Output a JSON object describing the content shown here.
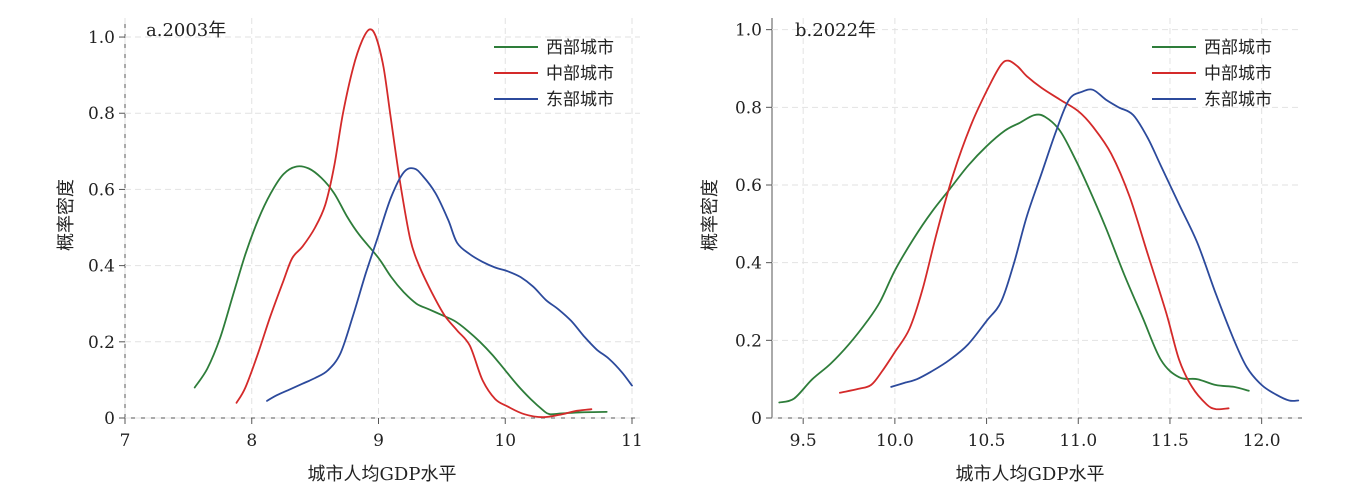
{
  "chart_data": [
    {
      "type": "line",
      "title": "a.2003年",
      "xlabel": "城市人均GDP水平",
      "ylabel": "概率密度",
      "xlim": [
        7,
        11
      ],
      "ylim": [
        0,
        1.05
      ],
      "xticks": [
        7,
        8,
        9,
        10,
        11
      ],
      "xtick_labels": [
        "7",
        "8",
        "9",
        "10",
        "11"
      ],
      "yticks": [
        0,
        0.2,
        0.4,
        0.6,
        0.8,
        1.0
      ],
      "ytick_labels": [
        "0",
        "0.2",
        "0.4",
        "0.6",
        "0.8",
        "1.0"
      ],
      "grid": true,
      "legend_position": "top-right",
      "series": [
        {
          "name": "西部城市",
          "color": "#2e7d3a",
          "points": [
            [
              7.55,
              0.08
            ],
            [
              7.65,
              0.13
            ],
            [
              7.75,
              0.21
            ],
            [
              7.85,
              0.32
            ],
            [
              7.95,
              0.43
            ],
            [
              8.05,
              0.52
            ],
            [
              8.15,
              0.59
            ],
            [
              8.25,
              0.64
            ],
            [
              8.35,
              0.66
            ],
            [
              8.45,
              0.655
            ],
            [
              8.55,
              0.63
            ],
            [
              8.65,
              0.59
            ],
            [
              8.75,
              0.53
            ],
            [
              8.85,
              0.48
            ],
            [
              9.0,
              0.42
            ],
            [
              9.1,
              0.37
            ],
            [
              9.2,
              0.33
            ],
            [
              9.3,
              0.3
            ],
            [
              9.4,
              0.285
            ],
            [
              9.5,
              0.27
            ],
            [
              9.6,
              0.255
            ],
            [
              9.7,
              0.23
            ],
            [
              9.8,
              0.2
            ],
            [
              9.9,
              0.165
            ],
            [
              10.0,
              0.125
            ],
            [
              10.1,
              0.085
            ],
            [
              10.2,
              0.05
            ],
            [
              10.3,
              0.02
            ],
            [
              10.35,
              0.01
            ],
            [
              10.45,
              0.012
            ],
            [
              10.6,
              0.015
            ],
            [
              10.8,
              0.016
            ]
          ]
        },
        {
          "name": "中部城市",
          "color": "#d42a2a",
          "points": [
            [
              7.88,
              0.04
            ],
            [
              7.95,
              0.08
            ],
            [
              8.05,
              0.17
            ],
            [
              8.15,
              0.27
            ],
            [
              8.25,
              0.36
            ],
            [
              8.32,
              0.42
            ],
            [
              8.4,
              0.45
            ],
            [
              8.5,
              0.5
            ],
            [
              8.58,
              0.56
            ],
            [
              8.65,
              0.66
            ],
            [
              8.72,
              0.8
            ],
            [
              8.8,
              0.92
            ],
            [
              8.87,
              0.99
            ],
            [
              8.93,
              1.02
            ],
            [
              8.98,
              1.0
            ],
            [
              9.04,
              0.92
            ],
            [
              9.1,
              0.78
            ],
            [
              9.17,
              0.62
            ],
            [
              9.25,
              0.47
            ],
            [
              9.32,
              0.4
            ],
            [
              9.42,
              0.33
            ],
            [
              9.52,
              0.27
            ],
            [
              9.62,
              0.23
            ],
            [
              9.72,
              0.19
            ],
            [
              9.82,
              0.1
            ],
            [
              9.92,
              0.05
            ],
            [
              10.02,
              0.03
            ],
            [
              10.15,
              0.01
            ],
            [
              10.3,
              0.002
            ],
            [
              10.45,
              0.01
            ],
            [
              10.55,
              0.018
            ],
            [
              10.68,
              0.023
            ]
          ]
        },
        {
          "name": "东部城市",
          "color": "#2c4a9c",
          "points": [
            [
              8.12,
              0.045
            ],
            [
              8.2,
              0.06
            ],
            [
              8.3,
              0.075
            ],
            [
              8.4,
              0.09
            ],
            [
              8.5,
              0.105
            ],
            [
              8.6,
              0.125
            ],
            [
              8.7,
              0.17
            ],
            [
              8.8,
              0.27
            ],
            [
              8.9,
              0.38
            ],
            [
              9.0,
              0.48
            ],
            [
              9.1,
              0.58
            ],
            [
              9.2,
              0.645
            ],
            [
              9.28,
              0.655
            ],
            [
              9.35,
              0.635
            ],
            [
              9.45,
              0.59
            ],
            [
              9.55,
              0.52
            ],
            [
              9.62,
              0.46
            ],
            [
              9.72,
              0.43
            ],
            [
              9.82,
              0.41
            ],
            [
              9.92,
              0.395
            ],
            [
              10.02,
              0.385
            ],
            [
              10.12,
              0.37
            ],
            [
              10.22,
              0.345
            ],
            [
              10.32,
              0.31
            ],
            [
              10.42,
              0.285
            ],
            [
              10.52,
              0.255
            ],
            [
              10.62,
              0.215
            ],
            [
              10.72,
              0.18
            ],
            [
              10.82,
              0.155
            ],
            [
              10.92,
              0.12
            ],
            [
              11.0,
              0.085
            ]
          ]
        }
      ]
    },
    {
      "type": "line",
      "title": "b.2022年",
      "xlabel": "城市人均GDP水平",
      "ylabel": "概率密度",
      "xlim": [
        9.33,
        12.22
      ],
      "ylim": [
        0,
        1.03
      ],
      "xticks": [
        9.5,
        10.0,
        10.5,
        11.0,
        11.5,
        12.0
      ],
      "xtick_labels": [
        "9.5",
        "10.0",
        "10.5",
        "11.0",
        "11.5",
        "12.0"
      ],
      "yticks": [
        0,
        0.2,
        0.4,
        0.6,
        0.8,
        1.0
      ],
      "ytick_labels": [
        "0",
        "0.2",
        "0.4",
        "0.6",
        "0.8",
        "1.0"
      ],
      "grid": true,
      "legend_position": "top-right",
      "series": [
        {
          "name": "西部城市",
          "color": "#2e7d3a",
          "points": [
            [
              9.37,
              0.04
            ],
            [
              9.45,
              0.05
            ],
            [
              9.55,
              0.1
            ],
            [
              9.65,
              0.14
            ],
            [
              9.75,
              0.19
            ],
            [
              9.85,
              0.25
            ],
            [
              9.92,
              0.3
            ],
            [
              10.0,
              0.38
            ],
            [
              10.1,
              0.46
            ],
            [
              10.2,
              0.53
            ],
            [
              10.3,
              0.59
            ],
            [
              10.4,
              0.65
            ],
            [
              10.5,
              0.7
            ],
            [
              10.6,
              0.74
            ],
            [
              10.68,
              0.76
            ],
            [
              10.76,
              0.78
            ],
            [
              10.82,
              0.775
            ],
            [
              10.9,
              0.74
            ],
            [
              10.98,
              0.67
            ],
            [
              11.05,
              0.6
            ],
            [
              11.15,
              0.49
            ],
            [
              11.25,
              0.37
            ],
            [
              11.35,
              0.26
            ],
            [
              11.45,
              0.15
            ],
            [
              11.55,
              0.105
            ],
            [
              11.65,
              0.1
            ],
            [
              11.75,
              0.085
            ],
            [
              11.85,
              0.08
            ],
            [
              11.93,
              0.07
            ]
          ]
        },
        {
          "name": "中部城市",
          "color": "#d42a2a",
          "points": [
            [
              9.7,
              0.065
            ],
            [
              9.8,
              0.075
            ],
            [
              9.87,
              0.085
            ],
            [
              9.93,
              0.12
            ],
            [
              10.0,
              0.17
            ],
            [
              10.08,
              0.23
            ],
            [
              10.15,
              0.33
            ],
            [
              10.23,
              0.48
            ],
            [
              10.32,
              0.63
            ],
            [
              10.42,
              0.76
            ],
            [
              10.52,
              0.86
            ],
            [
              10.58,
              0.91
            ],
            [
              10.62,
              0.92
            ],
            [
              10.67,
              0.905
            ],
            [
              10.72,
              0.88
            ],
            [
              10.8,
              0.85
            ],
            [
              10.9,
              0.82
            ],
            [
              11.0,
              0.79
            ],
            [
              11.08,
              0.75
            ],
            [
              11.18,
              0.68
            ],
            [
              11.28,
              0.57
            ],
            [
              11.38,
              0.42
            ],
            [
              11.48,
              0.27
            ],
            [
              11.55,
              0.15
            ],
            [
              11.62,
              0.08
            ],
            [
              11.7,
              0.035
            ],
            [
              11.75,
              0.023
            ],
            [
              11.82,
              0.025
            ]
          ]
        },
        {
          "name": "东部城市",
          "color": "#2c4a9c",
          "points": [
            [
              9.98,
              0.08
            ],
            [
              10.05,
              0.09
            ],
            [
              10.12,
              0.1
            ],
            [
              10.2,
              0.12
            ],
            [
              10.3,
              0.15
            ],
            [
              10.4,
              0.19
            ],
            [
              10.5,
              0.25
            ],
            [
              10.58,
              0.3
            ],
            [
              10.65,
              0.4
            ],
            [
              10.72,
              0.52
            ],
            [
              10.8,
              0.63
            ],
            [
              10.88,
              0.74
            ],
            [
              10.95,
              0.82
            ],
            [
              11.02,
              0.84
            ],
            [
              11.08,
              0.845
            ],
            [
              11.15,
              0.82
            ],
            [
              11.22,
              0.8
            ],
            [
              11.3,
              0.78
            ],
            [
              11.38,
              0.72
            ],
            [
              11.45,
              0.65
            ],
            [
              11.55,
              0.55
            ],
            [
              11.65,
              0.45
            ],
            [
              11.75,
              0.32
            ],
            [
              11.85,
              0.2
            ],
            [
              11.92,
              0.13
            ],
            [
              12.0,
              0.085
            ],
            [
              12.08,
              0.06
            ],
            [
              12.15,
              0.045
            ],
            [
              12.2,
              0.045
            ]
          ]
        }
      ]
    }
  ]
}
